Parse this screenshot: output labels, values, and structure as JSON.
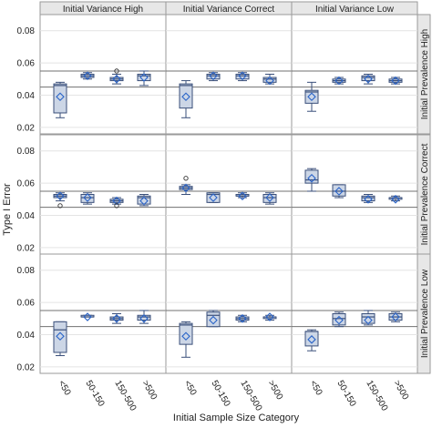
{
  "chart_data": {
    "type": "box",
    "xlabel": "Initial Sample Size Category",
    "ylabel": "Type I Error",
    "categories": [
      "<50",
      "50-150",
      "150-500",
      ">500"
    ],
    "column_facets": [
      "Initial Variance High",
      "Initial Variance Correct",
      "Initial Variance Low"
    ],
    "row_facets": [
      "Initial Prevalence High",
      "Initial Prevalence Correct",
      "Initial Prevalence Low"
    ],
    "ylim": [
      0.016,
      0.09
    ],
    "yticks": [
      "0.02",
      "0.04",
      "0.06",
      "0.08"
    ],
    "ytick_values": [
      0.02,
      0.04,
      0.06,
      0.08
    ],
    "reference_lines": [
      0.045,
      0.055
    ],
    "grid": "horizontal",
    "colors": {
      "box_fill": "#ccd6e6",
      "box_edge": "#3a4f7a",
      "mean_marker": "#2a64c8",
      "reference_line": "#707070",
      "strip": "#e7e7e7"
    },
    "panels": [
      [
        [
          {
            "min": 0.026,
            "q1": 0.029,
            "median": 0.046,
            "q3": 0.047,
            "max": 0.048,
            "mean": 0.039,
            "outliers": []
          },
          {
            "min": 0.05,
            "q1": 0.051,
            "median": 0.052,
            "q3": 0.053,
            "max": 0.054,
            "mean": 0.052,
            "outliers": []
          },
          {
            "min": 0.047,
            "q1": 0.049,
            "median": 0.05,
            "q3": 0.051,
            "max": 0.053,
            "mean": 0.05,
            "outliers": [
              0.055
            ]
          },
          {
            "min": 0.046,
            "q1": 0.049,
            "median": 0.052,
            "q3": 0.053,
            "max": 0.055,
            "mean": 0.051,
            "outliers": []
          }
        ],
        [
          {
            "min": 0.026,
            "q1": 0.032,
            "median": 0.046,
            "q3": 0.047,
            "max": 0.049,
            "mean": 0.039,
            "outliers": []
          },
          {
            "min": 0.049,
            "q1": 0.05,
            "median": 0.052,
            "q3": 0.053,
            "max": 0.054,
            "mean": 0.052,
            "outliers": []
          },
          {
            "min": 0.049,
            "q1": 0.05,
            "median": 0.052,
            "q3": 0.053,
            "max": 0.054,
            "mean": 0.052,
            "outliers": []
          },
          {
            "min": 0.047,
            "q1": 0.048,
            "median": 0.05,
            "q3": 0.051,
            "max": 0.053,
            "mean": 0.049,
            "outliers": []
          }
        ],
        [
          {
            "min": 0.03,
            "q1": 0.035,
            "median": 0.042,
            "q3": 0.043,
            "max": 0.048,
            "mean": 0.039,
            "outliers": []
          },
          {
            "min": 0.047,
            "q1": 0.048,
            "median": 0.049,
            "q3": 0.05,
            "max": 0.051,
            "mean": 0.049,
            "outliers": []
          },
          {
            "min": 0.047,
            "q1": 0.049,
            "median": 0.051,
            "q3": 0.052,
            "max": 0.053,
            "mean": 0.05,
            "outliers": []
          },
          {
            "min": 0.047,
            "q1": 0.048,
            "median": 0.049,
            "q3": 0.05,
            "max": 0.051,
            "mean": 0.049,
            "outliers": []
          }
        ]
      ],
      [
        [
          {
            "min": 0.049,
            "q1": 0.051,
            "median": 0.052,
            "q3": 0.053,
            "max": 0.054,
            "mean": 0.052,
            "outliers": [
              0.046
            ]
          },
          {
            "min": 0.047,
            "q1": 0.048,
            "median": 0.051,
            "q3": 0.053,
            "max": 0.054,
            "mean": 0.051,
            "outliers": []
          },
          {
            "min": 0.047,
            "q1": 0.048,
            "median": 0.049,
            "q3": 0.05,
            "max": 0.051,
            "mean": 0.049,
            "outliers": [
              0.046
            ]
          },
          {
            "min": 0.046,
            "q1": 0.047,
            "median": 0.051,
            "q3": 0.052,
            "max": 0.053,
            "mean": 0.049,
            "outliers": []
          }
        ],
        [
          {
            "min": 0.053,
            "q1": 0.056,
            "median": 0.057,
            "q3": 0.058,
            "max": 0.059,
            "mean": 0.057,
            "outliers": [
              0.063
            ]
          },
          {
            "min": 0.048,
            "q1": 0.048,
            "median": 0.053,
            "q3": 0.054,
            "max": 0.054,
            "mean": 0.051,
            "outliers": []
          },
          {
            "min": 0.051,
            "q1": 0.052,
            "median": 0.052,
            "q3": 0.053,
            "max": 0.054,
            "mean": 0.052,
            "outliers": []
          },
          {
            "min": 0.047,
            "q1": 0.048,
            "median": 0.051,
            "q3": 0.053,
            "max": 0.054,
            "mean": 0.051,
            "outliers": []
          }
        ],
        [
          {
            "min": 0.055,
            "q1": 0.06,
            "median": 0.062,
            "q3": 0.068,
            "max": 0.069,
            "mean": 0.063,
            "outliers": []
          },
          {
            "min": 0.051,
            "q1": 0.052,
            "median": 0.055,
            "q3": 0.059,
            "max": 0.059,
            "mean": 0.055,
            "outliers": []
          },
          {
            "min": 0.048,
            "q1": 0.049,
            "median": 0.051,
            "q3": 0.052,
            "max": 0.053,
            "mean": 0.05,
            "outliers": []
          },
          {
            "min": 0.049,
            "q1": 0.05,
            "median": 0.051,
            "q3": 0.051,
            "max": 0.052,
            "mean": 0.05,
            "outliers": []
          }
        ]
      ],
      [
        [
          {
            "min": 0.027,
            "q1": 0.029,
            "median": 0.043,
            "q3": 0.048,
            "max": 0.048,
            "mean": 0.039,
            "outliers": []
          },
          {
            "min": 0.051,
            "q1": 0.051,
            "median": 0.051,
            "q3": 0.052,
            "max": 0.052,
            "mean": 0.051,
            "outliers": []
          },
          {
            "min": 0.047,
            "q1": 0.049,
            "median": 0.05,
            "q3": 0.051,
            "max": 0.053,
            "mean": 0.05,
            "outliers": []
          },
          {
            "min": 0.047,
            "q1": 0.049,
            "median": 0.051,
            "q3": 0.052,
            "max": 0.055,
            "mean": 0.05,
            "outliers": []
          }
        ],
        [
          {
            "min": 0.026,
            "q1": 0.034,
            "median": 0.046,
            "q3": 0.047,
            "max": 0.048,
            "mean": 0.039,
            "outliers": []
          },
          {
            "min": 0.045,
            "q1": 0.045,
            "median": 0.052,
            "q3": 0.054,
            "max": 0.055,
            "mean": 0.049,
            "outliers": []
          },
          {
            "min": 0.048,
            "q1": 0.049,
            "median": 0.05,
            "q3": 0.051,
            "max": 0.052,
            "mean": 0.05,
            "outliers": []
          },
          {
            "min": 0.049,
            "q1": 0.05,
            "median": 0.051,
            "q3": 0.051,
            "max": 0.052,
            "mean": 0.051,
            "outliers": []
          }
        ],
        [
          {
            "min": 0.03,
            "q1": 0.033,
            "median": 0.042,
            "q3": 0.042,
            "max": 0.043,
            "mean": 0.037,
            "outliers": []
          },
          {
            "min": 0.045,
            "q1": 0.046,
            "median": 0.05,
            "q3": 0.053,
            "max": 0.054,
            "mean": 0.049,
            "outliers": []
          },
          {
            "min": 0.046,
            "q1": 0.047,
            "median": 0.051,
            "q3": 0.053,
            "max": 0.055,
            "mean": 0.049,
            "outliers": []
          },
          {
            "min": 0.048,
            "q1": 0.049,
            "median": 0.051,
            "q3": 0.053,
            "max": 0.054,
            "mean": 0.051,
            "outliers": []
          }
        ]
      ]
    ]
  }
}
